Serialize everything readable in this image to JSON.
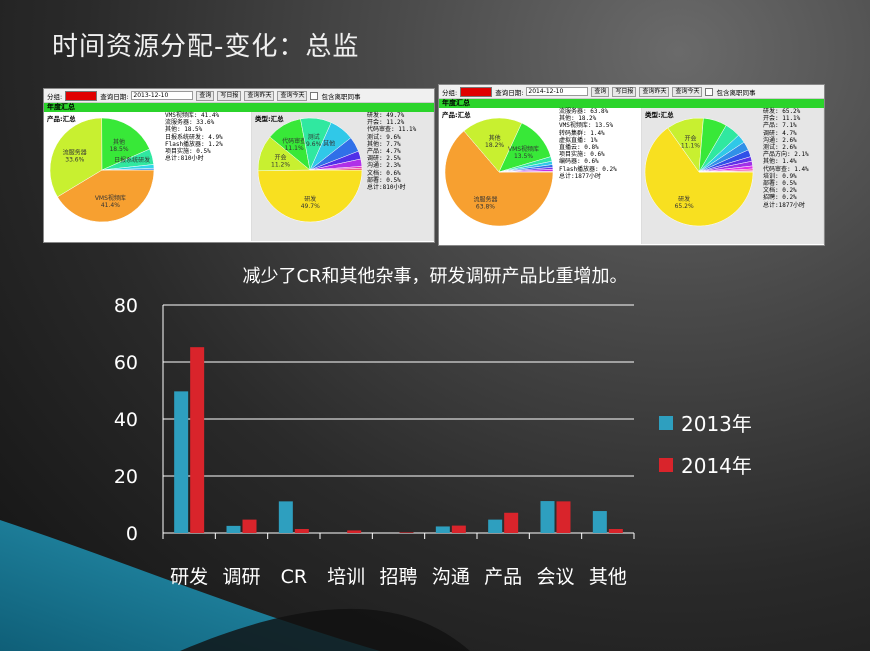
{
  "slide": {
    "title": "时间资源分配-变化：总监",
    "caption": "减少了CR和其他杂事，研发调研产品比重增加。"
  },
  "shots": [
    {
      "id": "2013",
      "toolbar": {
        "group_label": "分组:",
        "date_label": "查询日期:",
        "date_value": "2013-12-10",
        "buttons": [
          "查询",
          "写日报",
          "查询昨天",
          "查询今天"
        ],
        "checkbox_label": "包含离职同事"
      },
      "section_title": "年度汇总",
      "left": {
        "header": "产品:汇总",
        "slices": [
          {
            "label": "VMS视频库",
            "value": 41.4,
            "color": "#f7a030",
            "tag": "VMS视频库",
            "pct": "41.4%"
          },
          {
            "label": "流服务器",
            "value": 33.6,
            "color": "#c8f030",
            "tag": "流服务器",
            "pct": "33.6%"
          },
          {
            "label": "其他",
            "value": 18.5,
            "color": "#38e838",
            "tag": "其他",
            "pct": "18.5%"
          },
          {
            "label": "日报系统研发",
            "value": 4.9,
            "color": "#30e8a0",
            "tag": "日报系统研发",
            "pct": ""
          },
          {
            "label": "Flash播放器",
            "value": 1.2,
            "color": "#30d8e8",
            "tag": "",
            "pct": ""
          },
          {
            "label": "项目实施",
            "value": 0.5,
            "color": "#3090e8",
            "tag": "",
            "pct": ""
          }
        ],
        "legend": [
          "VMS视频库: 41.4%",
          "流服务器: 33.6%",
          "其他: 18.5%",
          "日报系统研发: 4.9%",
          "Flash播放器: 1.2%",
          "项目实施: 0.5%",
          "总计:810小时"
        ]
      },
      "right": {
        "header": "类型:汇总",
        "slices": [
          {
            "label": "研发",
            "value": 49.7,
            "color": "#f8e020",
            "tag": "研发",
            "pct": "49.7%"
          },
          {
            "label": "开会",
            "value": 11.2,
            "color": "#c8f030",
            "tag": "开会",
            "pct": "11.2%"
          },
          {
            "label": "代码审查",
            "value": 11.1,
            "color": "#38e838",
            "tag": "代码审查",
            "pct": "11.1%"
          },
          {
            "label": "测试",
            "value": 9.6,
            "color": "#30e8a0",
            "tag": "测试",
            "pct": "9.6%"
          },
          {
            "label": "其他",
            "value": 7.7,
            "color": "#30c8e8",
            "tag": "其他",
            "pct": ""
          },
          {
            "label": "产品",
            "value": 4.7,
            "color": "#3070e8",
            "tag": "",
            "pct": ""
          },
          {
            "label": "调研",
            "value": 2.5,
            "color": "#5030e8",
            "tag": "",
            "pct": ""
          },
          {
            "label": "沟通",
            "value": 2.3,
            "color": "#b030e8",
            "tag": "",
            "pct": ""
          },
          {
            "label": "文档",
            "value": 0.6,
            "color": "#e830c0",
            "tag": "",
            "pct": ""
          },
          {
            "label": "部署",
            "value": 0.5,
            "color": "#e83060",
            "tag": "",
            "pct": ""
          }
        ],
        "legend": [
          "研发: 49.7%",
          "开会: 11.2%",
          "代码审查: 11.1%",
          "测试: 9.6%",
          "其他: 7.7%",
          "产品: 4.7%",
          "调研: 2.5%",
          "沟通: 2.3%",
          "文档: 0.6%",
          "部署: 0.5%",
          "总计:810小时"
        ]
      }
    },
    {
      "id": "2014",
      "toolbar": {
        "group_label": "分组:",
        "date_label": "查询日期:",
        "date_value": "2014-12-10",
        "buttons": [
          "查询",
          "写日报",
          "查询昨天",
          "查询今天"
        ],
        "checkbox_label": "包含离职同事"
      },
      "section_title": "年度汇总",
      "left": {
        "header": "产品:汇总",
        "slices": [
          {
            "label": "流服务器",
            "value": 63.8,
            "color": "#f7a030",
            "tag": "流服务器",
            "pct": "63.8%"
          },
          {
            "label": "其他",
            "value": 18.2,
            "color": "#c8f030",
            "tag": "其他",
            "pct": "18.2%"
          },
          {
            "label": "VMS视频库",
            "value": 13.5,
            "color": "#38e838",
            "tag": "VMS视频库",
            "pct": "13.5%"
          },
          {
            "label": "转码集群",
            "value": 1.4,
            "color": "#30e8a0",
            "tag": "",
            "pct": ""
          },
          {
            "label": "虚拟直播",
            "value": 1,
            "color": "#30c8e8",
            "tag": "",
            "pct": ""
          },
          {
            "label": "直播云",
            "value": 0.8,
            "color": "#3070e8",
            "tag": "",
            "pct": ""
          },
          {
            "label": "项目实施",
            "value": 0.6,
            "color": "#7030e8",
            "tag": "",
            "pct": ""
          },
          {
            "label": "编码器",
            "value": 0.6,
            "color": "#c030e8",
            "tag": "",
            "pct": ""
          },
          {
            "label": "Flash播放器",
            "value": 0.2,
            "color": "#e830a0",
            "tag": "",
            "pct": ""
          }
        ],
        "legend": [
          "流服务器: 63.8%",
          "其他: 18.2%",
          "VMS视频库: 13.5%",
          "转码集群: 1.4%",
          "虚拟直播: 1%",
          "直播云: 0.8%",
          "项目实施: 0.6%",
          "编码器: 0.6%",
          "Flash播放器: 0.2%",
          "总计:1877小时"
        ]
      },
      "right": {
        "header": "类型:汇总",
        "slices": [
          {
            "label": "研发",
            "value": 65.2,
            "color": "#f8e020",
            "tag": "研发",
            "pct": "65.2%"
          },
          {
            "label": "开会",
            "value": 11.1,
            "color": "#c8f030",
            "tag": "开会",
            "pct": "11.1%"
          },
          {
            "label": "产品",
            "value": 7.1,
            "color": "#38e838",
            "tag": "",
            "pct": ""
          },
          {
            "label": "调研",
            "value": 4.7,
            "color": "#30e8a0",
            "tag": "",
            "pct": ""
          },
          {
            "label": "沟通",
            "value": 2.6,
            "color": "#30c8e8",
            "tag": "",
            "pct": ""
          },
          {
            "label": "测试",
            "value": 2.6,
            "color": "#3090e8",
            "tag": "",
            "pct": ""
          },
          {
            "label": "产品方向",
            "value": 2.1,
            "color": "#3050e8",
            "tag": "",
            "pct": ""
          },
          {
            "label": "其他",
            "value": 1.4,
            "color": "#6030e8",
            "tag": "",
            "pct": ""
          },
          {
            "label": "代码审查",
            "value": 1.4,
            "color": "#a030e8",
            "tag": "",
            "pct": ""
          },
          {
            "label": "培训",
            "value": 0.9,
            "color": "#e030e8",
            "tag": "",
            "pct": ""
          },
          {
            "label": "部署",
            "value": 0.5,
            "color": "#e830a0",
            "tag": "",
            "pct": ""
          },
          {
            "label": "文档",
            "value": 0.2,
            "color": "#e83060",
            "tag": "",
            "pct": ""
          },
          {
            "label": "招聘",
            "value": 0.2,
            "color": "#e85030",
            "tag": "",
            "pct": ""
          }
        ],
        "legend": [
          "研发: 65.2%",
          "开会: 11.1%",
          "产品: 7.1%",
          "调研: 4.7%",
          "沟通: 2.6%",
          "测试: 2.6%",
          "产品方向: 2.1%",
          "其他: 1.4%",
          "代码审查: 1.4%",
          "培训: 0.9%",
          "部署: 0.5%",
          "文档: 0.2%",
          "招聘: 0.2%",
          "总计:1877小时"
        ]
      }
    }
  ],
  "chart_data": {
    "type": "bar",
    "categories": [
      "研发",
      "调研",
      "CR",
      "培训",
      "招聘",
      "沟通",
      "产品",
      "会议",
      "其他"
    ],
    "series": [
      {
        "name": "2013年",
        "color": "#2e9fbf",
        "values": [
          49.7,
          2.5,
          11.1,
          0,
          0,
          2.3,
          4.7,
          11.2,
          7.7
        ]
      },
      {
        "name": "2014年",
        "color": "#d9242b",
        "values": [
          65.2,
          4.7,
          1.4,
          0.9,
          0.2,
          2.6,
          7.1,
          11.1,
          1.4
        ]
      }
    ],
    "ylim": [
      0,
      80
    ],
    "yticks": [
      "0",
      "20",
      "40",
      "60",
      "80"
    ],
    "grid": true,
    "legend": "right"
  }
}
